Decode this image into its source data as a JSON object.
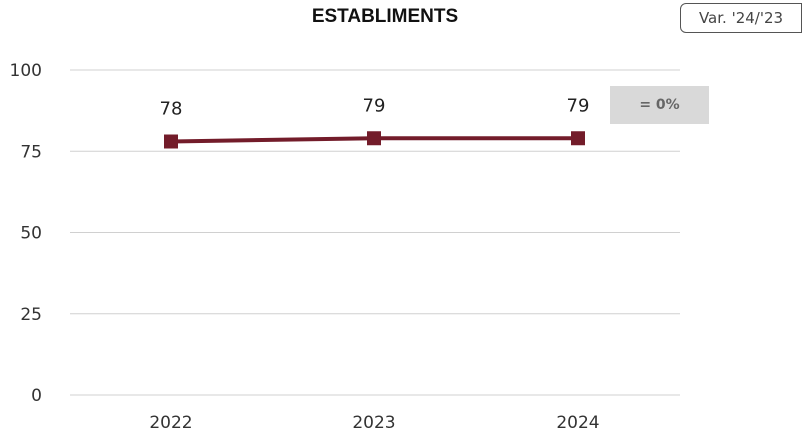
{
  "chart_data": {
    "type": "line",
    "title": "ESTABLIMENTS",
    "categories": [
      "2022",
      "2023",
      "2024"
    ],
    "series": [
      {
        "values": [
          78,
          79,
          79
        ],
        "color": "#731c2a"
      }
    ],
    "data_labels": [
      "78",
      "79",
      "79"
    ],
    "ylim": [
      0,
      100
    ],
    "yticks": [
      0,
      25,
      50,
      75,
      100
    ],
    "grid": true,
    "variation": {
      "label": "Var. '24/'23",
      "value": "= 0%"
    }
  }
}
